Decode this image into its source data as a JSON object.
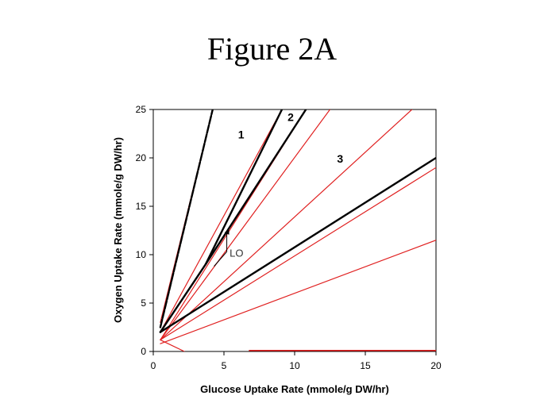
{
  "slide": {
    "title": "Figure 2A"
  },
  "chart_data": {
    "type": "line",
    "title": "",
    "xlabel": "Glucose Uptake Rate (mmole/g DW/hr)",
    "ylabel": "Oxygen Uptake Rate (mmole/g DW/hr)",
    "xlim": [
      0,
      20
    ],
    "ylim": [
      0,
      25
    ],
    "xticks": [
      0,
      5,
      10,
      15,
      20
    ],
    "yticks": [
      0,
      5,
      10,
      15,
      20,
      25
    ],
    "grid": false,
    "legend": "none",
    "colors": {
      "black": "#000000",
      "red": "#e02020"
    },
    "series": [
      {
        "color": "#e02020",
        "width": 1.2,
        "points": [
          [
            0.5,
            3.0
          ],
          [
            4.2,
            25
          ]
        ]
      },
      {
        "color": "#000000",
        "width": 2.4,
        "dash": true,
        "points": [
          [
            0.5,
            2.5
          ],
          [
            4.2,
            25
          ]
        ]
      },
      {
        "color": "#e02020",
        "width": 1.2,
        "points": [
          [
            0.5,
            2.0
          ],
          [
            9.1,
            25
          ]
        ]
      },
      {
        "color": "#000000",
        "width": 2.4,
        "points": [
          [
            0.5,
            2.0
          ],
          [
            3.7,
            9.0
          ],
          [
            9.1,
            25
          ]
        ]
      },
      {
        "color": "#e02020",
        "width": 1.2,
        "points": [
          [
            0.5,
            1.2
          ],
          [
            10.8,
            25
          ]
        ]
      },
      {
        "color": "#000000",
        "width": 2.4,
        "points": [
          [
            3.7,
            9.0
          ],
          [
            10.8,
            25
          ]
        ]
      },
      {
        "color": "#e02020",
        "width": 1.2,
        "points": [
          [
            0.5,
            1.2
          ],
          [
            12.5,
            25
          ]
        ]
      },
      {
        "color": "#e02020",
        "width": 1.2,
        "points": [
          [
            0.5,
            1.2
          ],
          [
            18.3,
            25
          ]
        ]
      },
      {
        "color": "#000000",
        "width": 2.4,
        "points": [
          [
            0.5,
            2.0
          ],
          [
            20,
            20
          ]
        ]
      },
      {
        "color": "#e02020",
        "width": 1.2,
        "points": [
          [
            0.5,
            1.2
          ],
          [
            20,
            19
          ]
        ]
      },
      {
        "color": "#e02020",
        "width": 1.2,
        "points": [
          [
            0.5,
            0.8
          ],
          [
            20,
            11.5
          ]
        ]
      },
      {
        "color": "#e02020",
        "width": 1.2,
        "points": [
          [
            0.5,
            1.2
          ],
          [
            2.2,
            0
          ]
        ]
      },
      {
        "color": "#e02020",
        "width": 1.6,
        "points": [
          [
            6.8,
            0.1
          ],
          [
            20,
            0.1
          ]
        ]
      }
    ],
    "annotations": [
      {
        "text": "1",
        "x": 6.0,
        "y": 22.0
      },
      {
        "text": "2",
        "x": 9.5,
        "y": 23.8
      },
      {
        "text": "3",
        "x": 13.0,
        "y": 19.5
      },
      {
        "text": "LO",
        "x": 5.4,
        "y": 9.8
      }
    ],
    "lo_marker": {
      "arrow_from": [
        5.2,
        10.3
      ],
      "arrow_to": [
        5.2,
        12.3
      ],
      "tail_to": [
        4.3,
        8.8
      ]
    }
  }
}
